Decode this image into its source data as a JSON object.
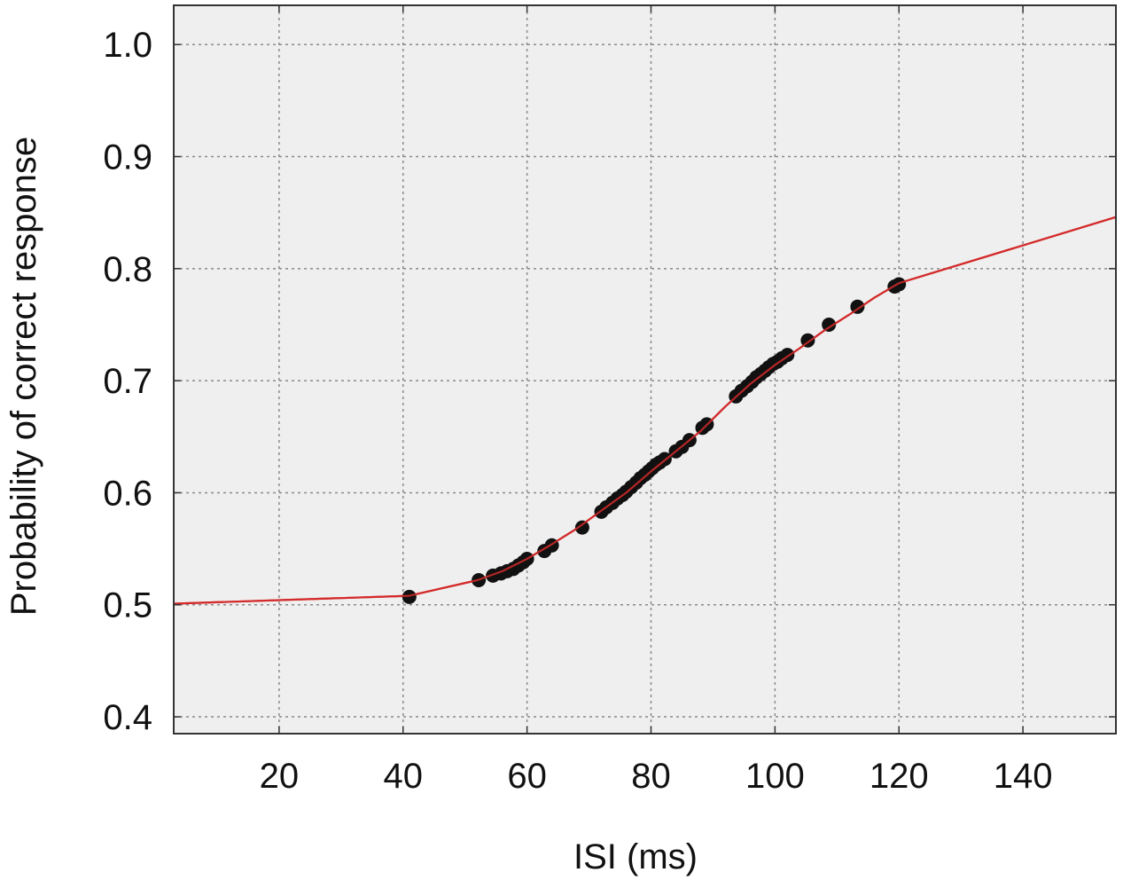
{
  "chart_data": {
    "type": "scatter",
    "xlabel": "ISI (ms)",
    "ylabel": "Probability of correct response",
    "xlim": [
      3,
      155
    ],
    "ylim": [
      0.385,
      1.035
    ],
    "x_ticks": [
      20,
      40,
      60,
      80,
      100,
      120,
      140
    ],
    "x_tick_labels": [
      "20",
      "40",
      "60",
      "80",
      "100",
      "120",
      "140"
    ],
    "y_ticks": [
      0.4,
      0.5,
      0.6,
      0.7,
      0.8,
      0.9,
      1.0
    ],
    "y_tick_labels": [
      "0.4",
      "0.5",
      "0.6",
      "0.7",
      "0.8",
      "0.9",
      "1.0"
    ],
    "grid": true,
    "colors": {
      "background": "#efefef",
      "grid": "#8a8a8a",
      "points": "#111111",
      "curve": "#d42a2a",
      "frame": "#333333"
    },
    "series": [
      {
        "type": "scatter",
        "x": [
          41,
          52.2,
          54.5,
          55.8,
          56.8,
          57.8,
          58.6,
          59.4,
          60,
          62.8,
          64,
          68.9,
          72,
          72.8,
          73.8,
          74.6,
          75.4,
          76,
          76.8,
          77.6,
          78.3,
          79,
          79.6,
          80.2,
          80.8,
          81.4,
          82.2,
          84,
          85,
          86.2,
          88.3,
          89,
          93.7,
          94.6,
          95.5,
          96.3,
          97,
          97.7,
          98.4,
          99,
          99.7,
          100.4,
          101.1,
          102,
          105.3,
          108.7,
          113.3,
          119.3,
          120
        ],
        "y": [
          0.507,
          0.522,
          0.526,
          0.528,
          0.53,
          0.532,
          0.535,
          0.538,
          0.541,
          0.548,
          0.553,
          0.569,
          0.583,
          0.587,
          0.591,
          0.595,
          0.598,
          0.601,
          0.605,
          0.609,
          0.613,
          0.616,
          0.619,
          0.622,
          0.625,
          0.627,
          0.63,
          0.637,
          0.641,
          0.647,
          0.658,
          0.661,
          0.686,
          0.691,
          0.695,
          0.699,
          0.703,
          0.706,
          0.709,
          0.712,
          0.715,
          0.717,
          0.72,
          0.723,
          0.736,
          0.75,
          0.766,
          0.784,
          0.786
        ]
      },
      {
        "type": "line",
        "x": [
          3,
          41,
          52,
          56,
          60,
          64,
          68,
          72,
          76,
          80,
          84,
          88,
          92,
          96,
          100,
          104,
          108,
          112,
          116,
          120,
          155
        ],
        "y": [
          0.501,
          0.508,
          0.522,
          0.53,
          0.541,
          0.554,
          0.568,
          0.584,
          0.6,
          0.619,
          0.637,
          0.655,
          0.677,
          0.697,
          0.714,
          0.729,
          0.745,
          0.759,
          0.774,
          0.787,
          0.846
        ]
      }
    ]
  }
}
